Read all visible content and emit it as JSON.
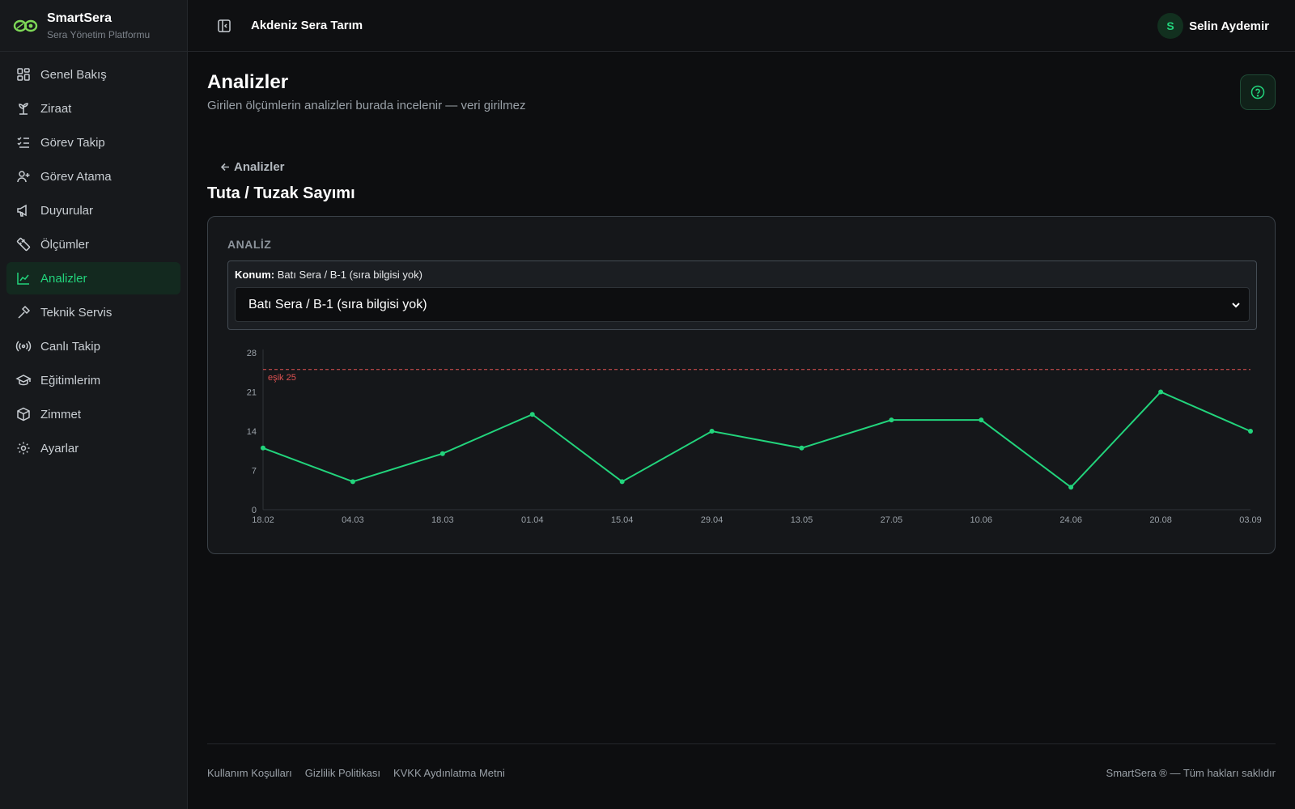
{
  "brand": {
    "name": "SmartSera",
    "subtitle": "Sera Yönetim Platformu"
  },
  "sidebar": {
    "items": [
      {
        "label": "Genel Bakış",
        "icon": "dashboard-icon",
        "active": false
      },
      {
        "label": "Ziraat",
        "icon": "sprout-icon",
        "active": false
      },
      {
        "label": "Görev Takip",
        "icon": "checklist-icon",
        "active": false
      },
      {
        "label": "Görev Atama",
        "icon": "user-plus-icon",
        "active": false
      },
      {
        "label": "Duyurular",
        "icon": "megaphone-icon",
        "active": false
      },
      {
        "label": "Ölçümler",
        "icon": "ruler-icon",
        "active": false
      },
      {
        "label": "Analizler",
        "icon": "chart-line-icon",
        "active": true
      },
      {
        "label": "Teknik Servis",
        "icon": "hammer-icon",
        "active": false
      },
      {
        "label": "Canlı Takip",
        "icon": "radio-icon",
        "active": false
      },
      {
        "label": "Eğitimlerim",
        "icon": "graduation-cap-icon",
        "active": false
      },
      {
        "label": "Zimmet",
        "icon": "box-icon",
        "active": false
      },
      {
        "label": "Ayarlar",
        "icon": "gear-icon",
        "active": false
      }
    ]
  },
  "header": {
    "org": "Akdeniz Sera Tarım",
    "user": {
      "initial": "S",
      "name": "Selin Aydemir"
    }
  },
  "page": {
    "title": "Analizler",
    "subtitle": "Girilen ölçümlerin analizleri burada incelenir — veri girilmez",
    "back_label": "Analizler",
    "section_title": "Tuta / Tuzak Sayımı"
  },
  "card": {
    "label": "ANALİZ",
    "location_label": "Konum:",
    "location_value": "Batı Sera / B-1 (sıra bilgisi yok)",
    "select_value": "Batı Sera / B-1 (sıra bilgisi yok)"
  },
  "chart_data": {
    "type": "line",
    "x": [
      "18.02",
      "04.03",
      "18.03",
      "01.04",
      "15.04",
      "29.04",
      "13.05",
      "27.05",
      "10.06",
      "24.06",
      "20.08",
      "03.09"
    ],
    "values": [
      11,
      5,
      10,
      17,
      5,
      14,
      11,
      16,
      16,
      4,
      21,
      14
    ],
    "yticks": [
      0,
      7,
      14,
      21,
      28
    ],
    "ylim": [
      0,
      28
    ],
    "threshold": {
      "value": 25,
      "label": "eşik 25"
    },
    "colors": {
      "line": "#22d47c",
      "threshold": "#e05252"
    }
  },
  "footer": {
    "links": [
      "Kullanım Koşulları",
      "Gizlilik Politikası",
      "KVKK Aydınlatma Metni"
    ],
    "copyright": "SmartSera ® — Tüm hakları saklıdır"
  }
}
